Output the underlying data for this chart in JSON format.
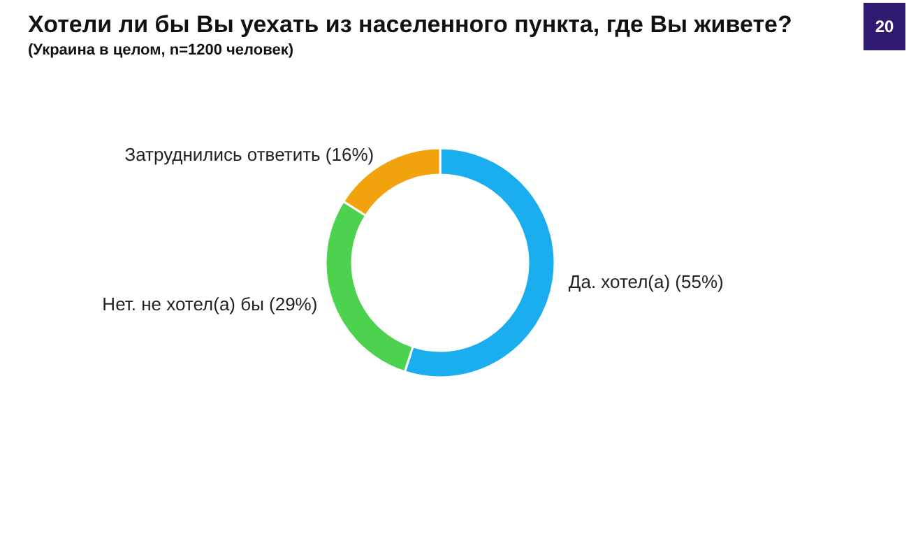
{
  "chart_data": {
    "type": "donut",
    "title": "Хотели ли бы Вы уехать из населенного пункта, где Вы живете?",
    "subtitle": "(Украина в целом, n=1200 человек)",
    "categories": [
      "Да. хотел(а)",
      "Нет. не хотел(а) бы",
      "Затруднились ответить"
    ],
    "values": [
      55,
      29,
      16
    ],
    "value_labels": [
      "(55%)",
      "(29%)",
      "(16%)"
    ],
    "colors": [
      "#1aaeee",
      "#4cd24f",
      "#f2a20c"
    ],
    "legend": false,
    "annotations": [
      "20"
    ]
  }
}
